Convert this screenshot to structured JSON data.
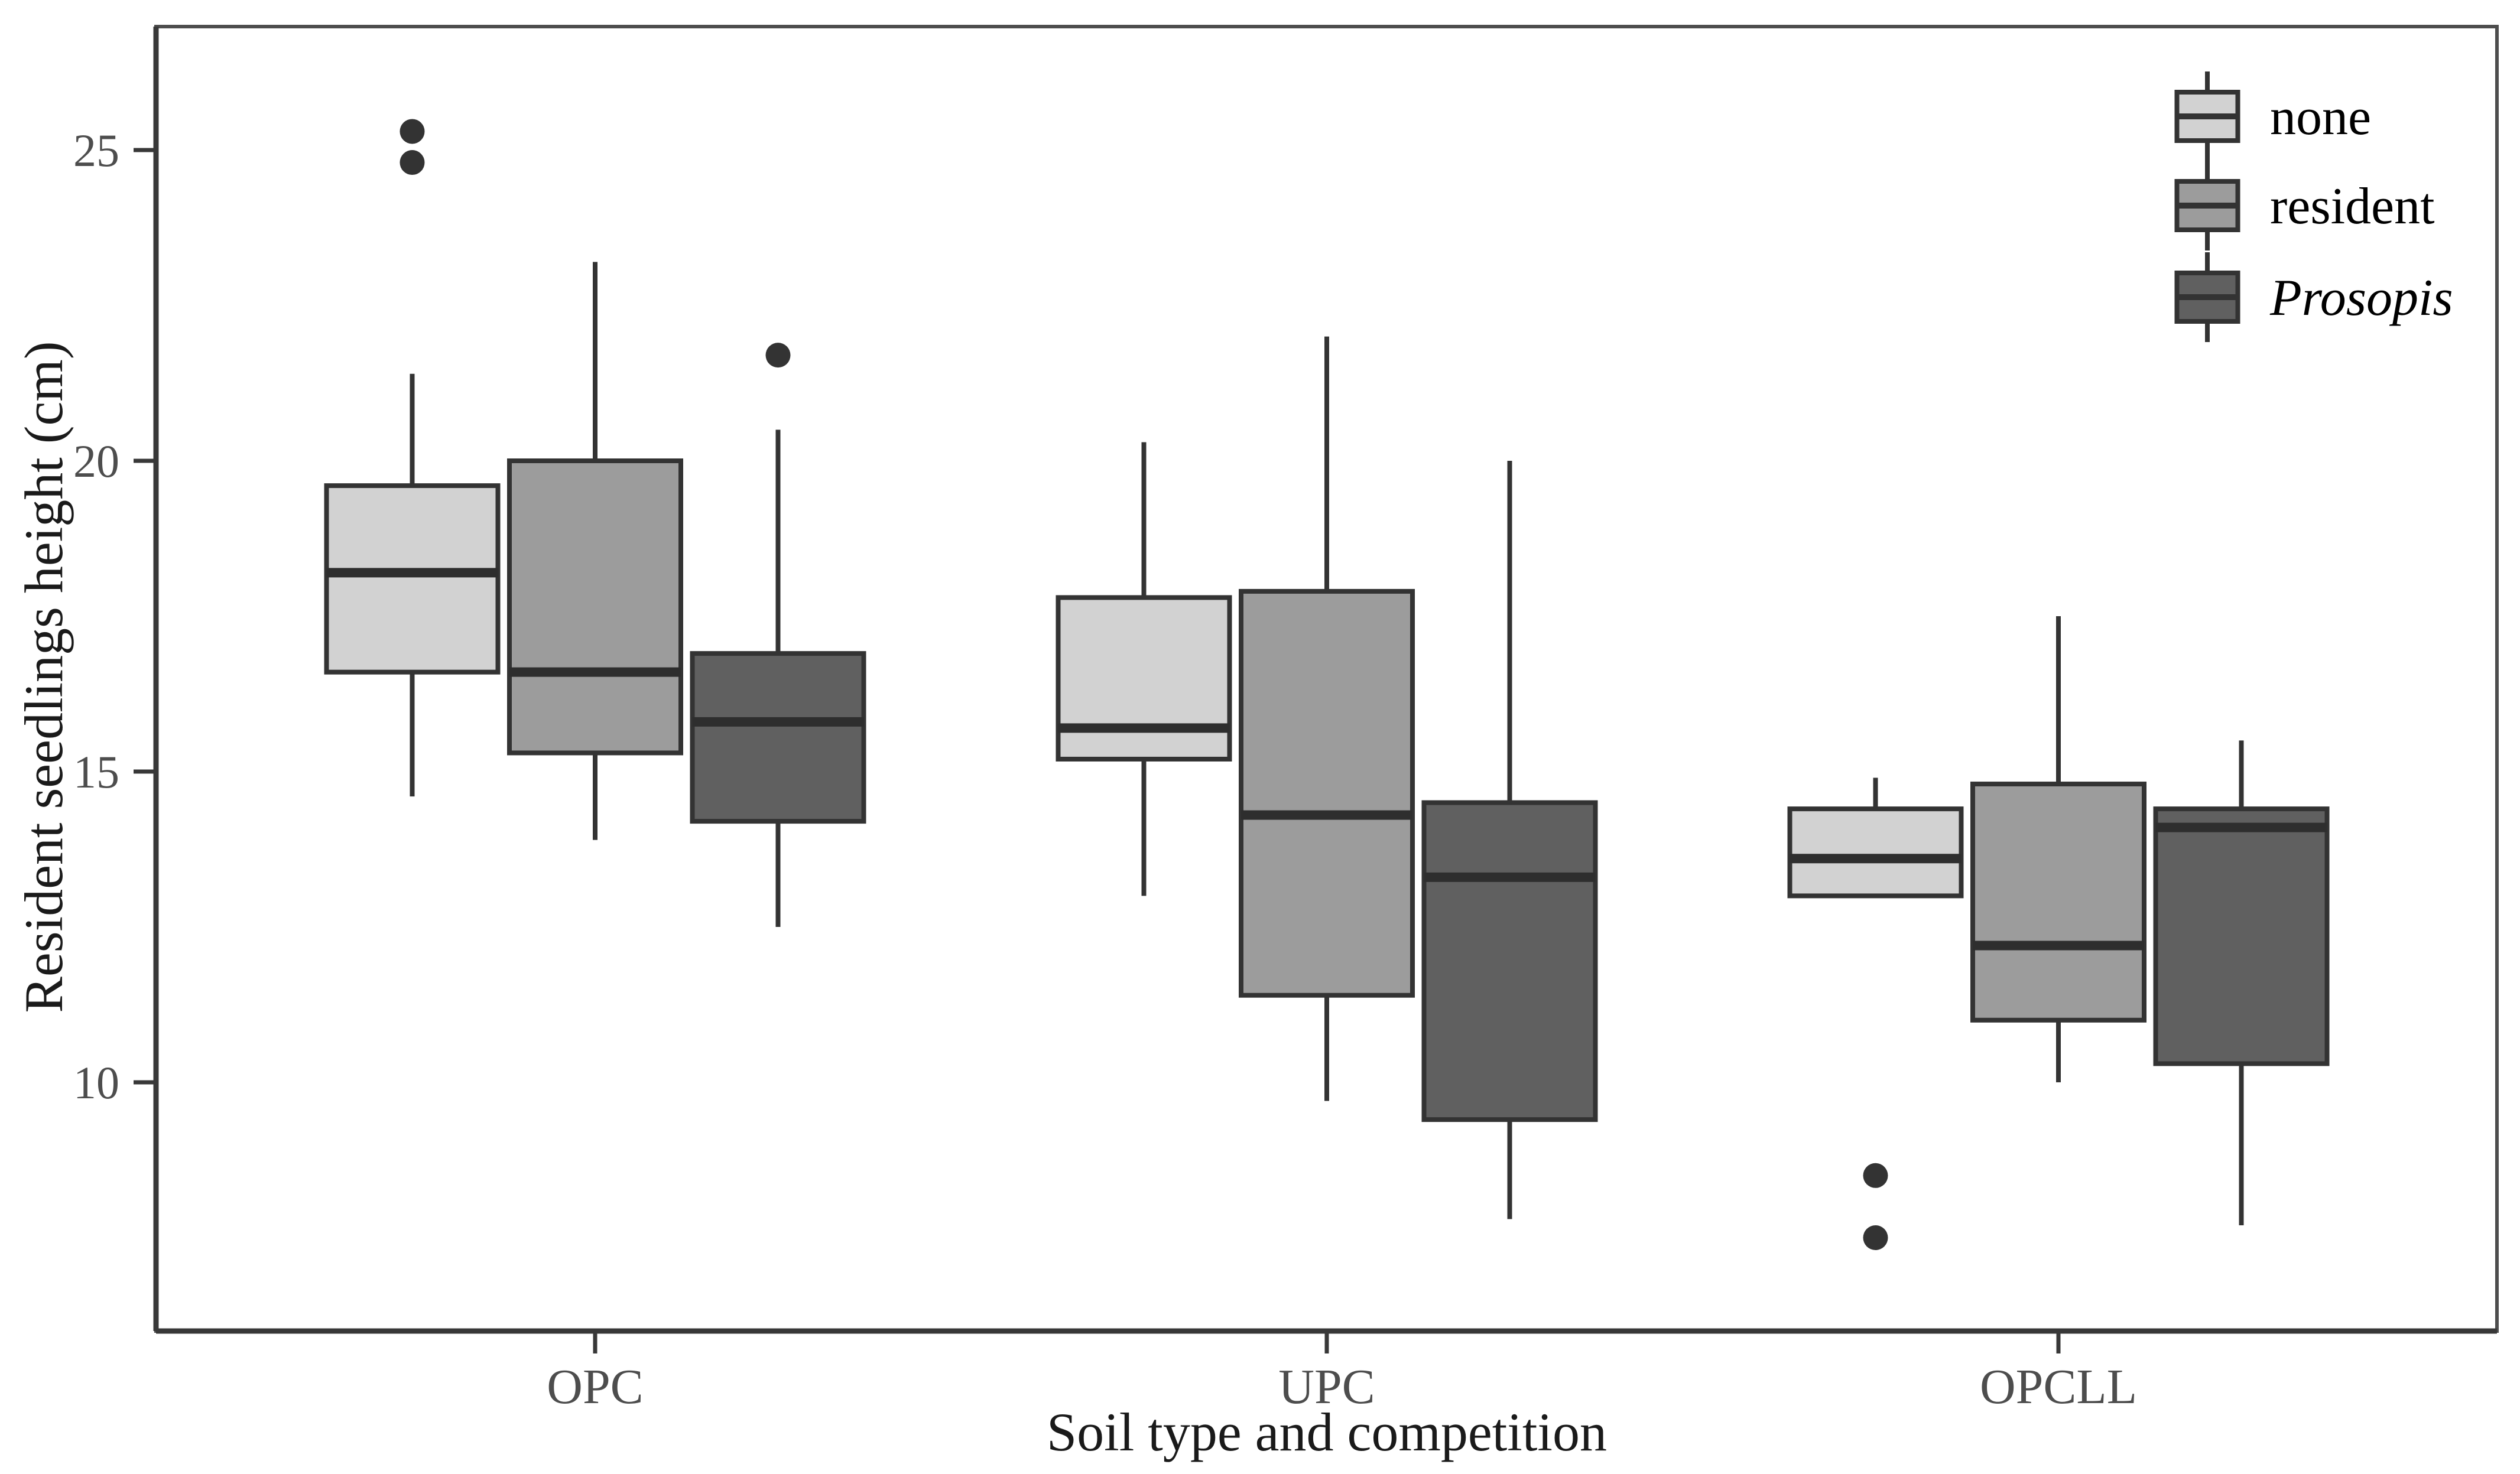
{
  "chart_data": {
    "type": "boxplot",
    "title": "",
    "xlabel": "Soil type and competition",
    "ylabel": "Resident seedlings height (cm)",
    "categories": [
      "OPC",
      "UPC",
      "OPCLL"
    ],
    "yticks": [
      25,
      20,
      15,
      10
    ],
    "ylim": [
      6.2,
      27.0
    ],
    "grid": "off",
    "legend_position": "top-right-inside",
    "legend": {
      "entries": [
        {
          "label": "none",
          "fill": "#d2d2d2",
          "italic": false
        },
        {
          "label": "resident",
          "fill": "#9c9c9c",
          "italic": false
        },
        {
          "label": "Prosopis",
          "fill": "#606060",
          "italic": true
        }
      ]
    },
    "series": [
      {
        "name": "none",
        "fill": "#d2d2d2",
        "boxes": [
          {
            "category": "OPC",
            "min": 14.6,
            "q1": 16.6,
            "median": 18.2,
            "q3": 19.6,
            "max": 21.4,
            "outliers": [
              24.8,
              25.3
            ]
          },
          {
            "category": "UPC",
            "min": 13.0,
            "q1": 15.2,
            "median": 15.7,
            "q3": 17.8,
            "max": 20.3,
            "outliers": []
          },
          {
            "category": "OPCLL",
            "min": 13.0,
            "q1": 13.0,
            "median": 13.6,
            "q3": 14.4,
            "max": 14.9,
            "outliers": [
              8.5,
              7.5
            ]
          }
        ]
      },
      {
        "name": "resident",
        "fill": "#9c9c9c",
        "boxes": [
          {
            "category": "OPC",
            "min": 13.9,
            "q1": 15.3,
            "median": 16.6,
            "q3": 20.0,
            "max": 23.2,
            "outliers": []
          },
          {
            "category": "UPC",
            "min": 9.7,
            "q1": 11.4,
            "median": 14.3,
            "q3": 17.9,
            "max": 22.0,
            "outliers": []
          },
          {
            "category": "OPCLL",
            "min": 10.0,
            "q1": 11.0,
            "median": 12.2,
            "q3": 14.8,
            "max": 17.5,
            "outliers": []
          }
        ]
      },
      {
        "name": "Prosopis",
        "fill": "#606060",
        "boxes": [
          {
            "category": "OPC",
            "min": 12.5,
            "q1": 14.2,
            "median": 15.8,
            "q3": 16.9,
            "max": 20.5,
            "outliers": [
              21.7
            ]
          },
          {
            "category": "UPC",
            "min": 7.8,
            "q1": 9.4,
            "median": 13.3,
            "q3": 14.5,
            "max": 20.0,
            "outliers": []
          },
          {
            "category": "OPCLL",
            "min": 7.7,
            "q1": 10.3,
            "median": 14.1,
            "q3": 14.4,
            "max": 15.5,
            "outliers": []
          }
        ]
      }
    ],
    "colors": {
      "box_stroke": "#333333",
      "median": "#2e2e2e",
      "whisker": "#333333",
      "outlier": "#333333",
      "panel_border": "#4d4d4d",
      "axis_line": "#383838",
      "tick_text": "#4d4d4d",
      "title_text": "#1a1a1a"
    }
  }
}
